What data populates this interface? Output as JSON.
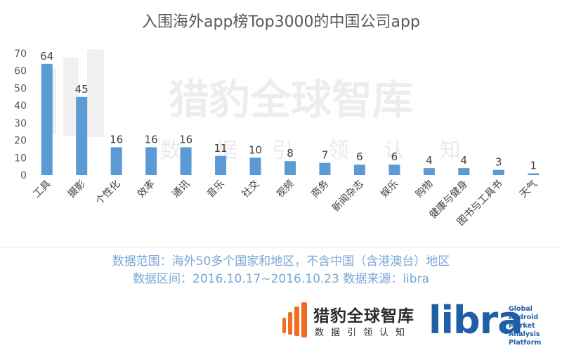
{
  "chart_data": {
    "type": "bar",
    "title": "入围海外app榜Top3000的中国公司app",
    "categories": [
      "工具",
      "摄影",
      "个性化",
      "效率",
      "通讯",
      "音乐",
      "社交",
      "视频",
      "商务",
      "新闻杂志",
      "娱乐",
      "购物",
      "健康与健身",
      "图书与工具书",
      "天气"
    ],
    "values": [
      64,
      45,
      16,
      16,
      16,
      11,
      10,
      8,
      7,
      6,
      6,
      4,
      4,
      3,
      1
    ],
    "ylim": [
      0,
      70
    ],
    "yticks": [
      0,
      10,
      20,
      30,
      40,
      50,
      60,
      70
    ],
    "grid": false,
    "bar_color": "#5b9bd5"
  },
  "watermark": {
    "name": "猎豹全球智库",
    "sub": "数 据 引 领 认 知"
  },
  "notes": {
    "line1": "数据范围：海外50多个国家和地区，不含中国（含港澳台）地区",
    "line2": "数据区间：2016.10.17~2016.10.23 数据来源：libra"
  },
  "footer": {
    "cheetah_name": "猎豹全球智库",
    "cheetah_sub": "数据引领认知",
    "libra_logo": "libra",
    "libra_text": [
      "Global",
      "Android Market",
      "Analysis Platform"
    ]
  },
  "colors": {
    "accent": "#5b9bd5",
    "note": "#7aa7d6",
    "libra": "#1f5fa6",
    "cheetah_orange": "#f26b21"
  }
}
